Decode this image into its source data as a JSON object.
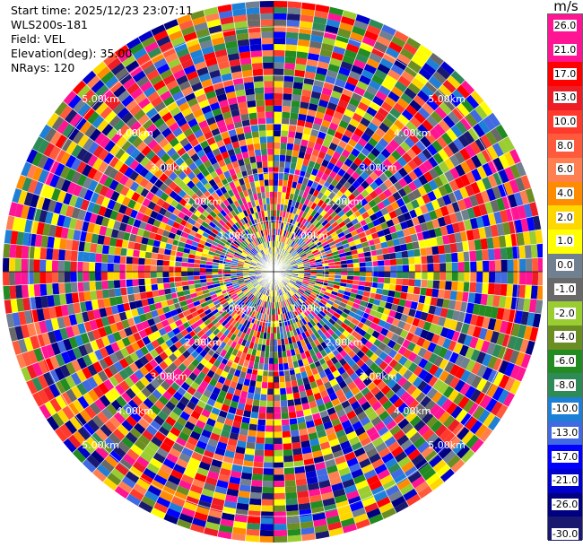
{
  "info": {
    "start_time": "Start time: 2025/12/23 23:07:11",
    "instrument": "WLS200s-181",
    "field": "Field: VEL",
    "elevation": "Elevation(deg): 35.00",
    "nrays": "NRays: 120"
  },
  "colorbar": {
    "unit": "m/s",
    "ticks": [
      "26.0",
      "21.0",
      "17.0",
      "13.0",
      "10.0",
      "8.0",
      "6.0",
      "4.0",
      "2.0",
      "1.0",
      "0.0",
      "-1.0",
      "-2.0",
      "-4.0",
      "-6.0",
      "-8.0",
      "-10.0",
      "-13.0",
      "-17.0",
      "-21.0",
      "-26.0",
      "-30.0"
    ],
    "colors": [
      "#ff1493",
      "#ff1493",
      "#ff0000",
      "#ee1c24",
      "#ff3a2d",
      "#ff5a3c",
      "#ff7f50",
      "#ff8c00",
      "#ffd700",
      "#ffff00",
      "#708090",
      "#696969",
      "#9acd32",
      "#6b8e23",
      "#228b22",
      "#2e8b57",
      "#1e7fd7",
      "#4169e1",
      "#0000ff",
      "#0000cd",
      "#000080",
      "#191970"
    ]
  },
  "chart_data": {
    "type": "ppi",
    "field": "VEL",
    "elevation_deg": 35.0,
    "nrays": 120,
    "range_rings_km": [
      "1.00km",
      "2.00km",
      "3.00km",
      "4.00km",
      "5.00km"
    ]
  }
}
